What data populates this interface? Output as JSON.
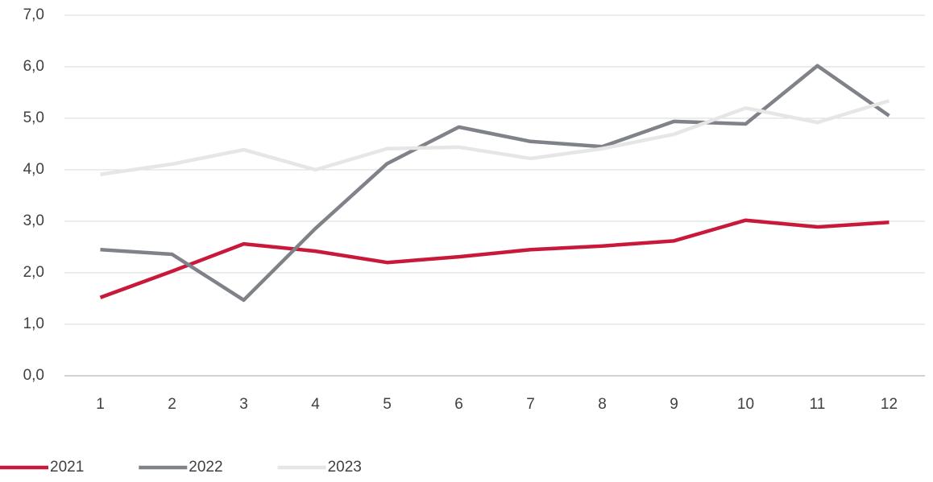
{
  "chart_data": {
    "type": "line",
    "categories": [
      "1",
      "2",
      "3",
      "4",
      "5",
      "6",
      "7",
      "8",
      "9",
      "10",
      "11",
      "12"
    ],
    "series": [
      {
        "name": "2021",
        "color": "#c9193a",
        "values": [
          1.52,
          2.03,
          2.56,
          2.42,
          2.2,
          2.31,
          2.45,
          2.52,
          2.62,
          3.02,
          2.89,
          2.98
        ]
      },
      {
        "name": "2022",
        "color": "#7f8389",
        "values": [
          2.45,
          2.36,
          1.47,
          2.86,
          4.12,
          4.83,
          4.55,
          4.45,
          4.94,
          4.89,
          6.02,
          5.05
        ]
      },
      {
        "name": "2023",
        "color": "#e6e6e6",
        "values": [
          3.91,
          4.11,
          4.39,
          4.0,
          4.41,
          4.44,
          4.22,
          4.41,
          4.69,
          5.2,
          4.92,
          5.34
        ]
      }
    ],
    "ylim": [
      0,
      7
    ],
    "yticks": [
      {
        "value": 0,
        "label": "0,0"
      },
      {
        "value": 1,
        "label": "1,0"
      },
      {
        "value": 2,
        "label": "2,0"
      },
      {
        "value": 3,
        "label": "3,0"
      },
      {
        "value": 4,
        "label": "4,0"
      },
      {
        "value": 5,
        "label": "5,0"
      },
      {
        "value": 6,
        "label": "6,0"
      },
      {
        "value": 7,
        "label": "7,0"
      }
    ],
    "grid": true,
    "legend": "bottom-left"
  }
}
